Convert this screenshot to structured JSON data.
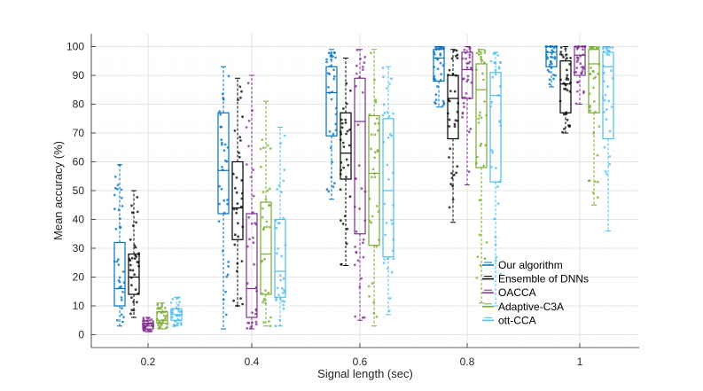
{
  "chart_data": {
    "type": "box",
    "title": "",
    "xlabel": "Signal length (sec)",
    "ylabel": "Mean accuracy (%)",
    "ylim": [
      0,
      100
    ],
    "yticks": [
      0,
      10,
      20,
      30,
      40,
      50,
      60,
      70,
      80,
      90,
      100
    ],
    "categories": [
      "0.2",
      "0.4",
      "0.6",
      "0.8",
      "1"
    ],
    "grid": true,
    "legend_position": "bottom-right",
    "series": [
      {
        "name": "Our algorithm",
        "color": "#0072BD",
        "boxes": [
          {
            "whisker_low": 3,
            "q1": 10,
            "median": 16,
            "q3": 32,
            "whisker_high": 59
          },
          {
            "whisker_low": 2,
            "q1": 42,
            "median": 57,
            "q3": 77,
            "whisker_high": 93
          },
          {
            "whisker_low": 47,
            "q1": 69,
            "median": 84,
            "q3": 93,
            "whisker_high": 99
          },
          {
            "whisker_low": 79,
            "q1": 88,
            "median": 96,
            "q3": 99,
            "whisker_high": 100
          },
          {
            "whisker_low": 86,
            "q1": 93,
            "median": 98,
            "q3": 100,
            "whisker_high": 100
          }
        ]
      },
      {
        "name": "Ensemble of DNNs",
        "color": "#000000",
        "boxes": [
          {
            "whisker_low": 6,
            "q1": 14,
            "median": 20,
            "q3": 28,
            "whisker_high": 50
          },
          {
            "whisker_low": 10,
            "q1": 33,
            "median": 44,
            "q3": 60,
            "whisker_high": 89
          },
          {
            "whisker_low": 24,
            "q1": 54,
            "median": 63,
            "q3": 77,
            "whisker_high": 96
          },
          {
            "whisker_low": 39,
            "q1": 68,
            "median": 82,
            "q3": 90,
            "whisker_high": 99
          },
          {
            "whisker_low": 70,
            "q1": 77,
            "median": 87,
            "q3": 95,
            "whisker_high": 100
          }
        ]
      },
      {
        "name": "OACCA",
        "color": "#7E2F8E",
        "boxes": [
          {
            "whisker_low": 1,
            "q1": 2,
            "median": 3,
            "q3": 4,
            "whisker_high": 6
          },
          {
            "whisker_low": 2,
            "q1": 6,
            "median": 16,
            "q3": 42,
            "whisker_high": 90
          },
          {
            "whisker_low": 5,
            "q1": 35,
            "median": 74,
            "q3": 89,
            "whisker_high": 99
          },
          {
            "whisker_low": 52,
            "q1": 82,
            "median": 92,
            "q3": 98,
            "whisker_high": 100
          },
          {
            "whisker_low": 80,
            "q1": 90,
            "median": 97,
            "q3": 100,
            "whisker_high": 100
          }
        ]
      },
      {
        "name": "Adaptive-C3A",
        "color": "#77AC30",
        "boxes": [
          {
            "whisker_low": 2,
            "q1": 4,
            "median": 5,
            "q3": 8,
            "whisker_high": 11
          },
          {
            "whisker_low": 3,
            "q1": 14,
            "median": 28,
            "q3": 46,
            "whisker_high": 81
          },
          {
            "whisker_low": 3,
            "q1": 31,
            "median": 56,
            "q3": 76,
            "whisker_high": 99
          },
          {
            "whisker_low": 11,
            "q1": 58,
            "median": 85,
            "q3": 94,
            "whisker_high": 99
          },
          {
            "whisker_low": 45,
            "q1": 77,
            "median": 94,
            "q3": 99,
            "whisker_high": 100
          }
        ]
      },
      {
        "name": "ott-CCA",
        "color": "#4DBEEE",
        "boxes": [
          {
            "whisker_low": 3,
            "q1": 5,
            "median": 7,
            "q3": 9,
            "whisker_high": 13
          },
          {
            "whisker_low": 3,
            "q1": 13,
            "median": 22,
            "q3": 40,
            "whisker_high": 72
          },
          {
            "whisker_low": 7,
            "q1": 27,
            "median": 50,
            "q3": 75,
            "whisker_high": 93
          },
          {
            "whisker_low": 10,
            "q1": 53,
            "median": 83,
            "q3": 91,
            "whisker_high": 98
          },
          {
            "whisker_low": 36,
            "q1": 68,
            "median": 93,
            "q3": 98,
            "whisker_high": 100
          }
        ]
      }
    ]
  }
}
